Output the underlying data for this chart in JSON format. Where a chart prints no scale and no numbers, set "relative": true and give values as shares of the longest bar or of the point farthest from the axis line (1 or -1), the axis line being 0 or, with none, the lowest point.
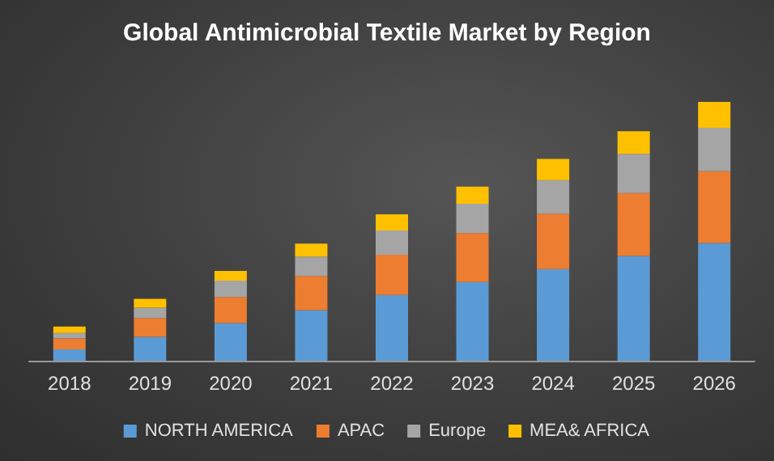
{
  "chart_data": {
    "type": "bar",
    "title": "Global Antimicrobial Textile Market by Region",
    "categories": [
      "2018",
      "2019",
      "2020",
      "2021",
      "2022",
      "2023",
      "2024",
      "2025",
      "2026"
    ],
    "relative": true,
    "stacked": true,
    "legend": "bottom",
    "series": [
      {
        "name": "NORTH AMERICA",
        "color": "#5b9bd5",
        "values": [
          0.044,
          0.092,
          0.145,
          0.195,
          0.254,
          0.304,
          0.354,
          0.405,
          0.455
        ]
      },
      {
        "name": "APAC",
        "color": "#ed7d31",
        "values": [
          0.042,
          0.073,
          0.101,
          0.132,
          0.155,
          0.189,
          0.214,
          0.243,
          0.277
        ]
      },
      {
        "name": "Europe",
        "color": "#a5a5a5",
        "values": [
          0.021,
          0.04,
          0.063,
          0.075,
          0.094,
          0.113,
          0.13,
          0.151,
          0.168
        ]
      },
      {
        "name": "MEA& AFRICA",
        "color": "#ffc000",
        "values": [
          0.025,
          0.034,
          0.038,
          0.05,
          0.063,
          0.067,
          0.082,
          0.088,
          0.1
        ]
      }
    ]
  }
}
